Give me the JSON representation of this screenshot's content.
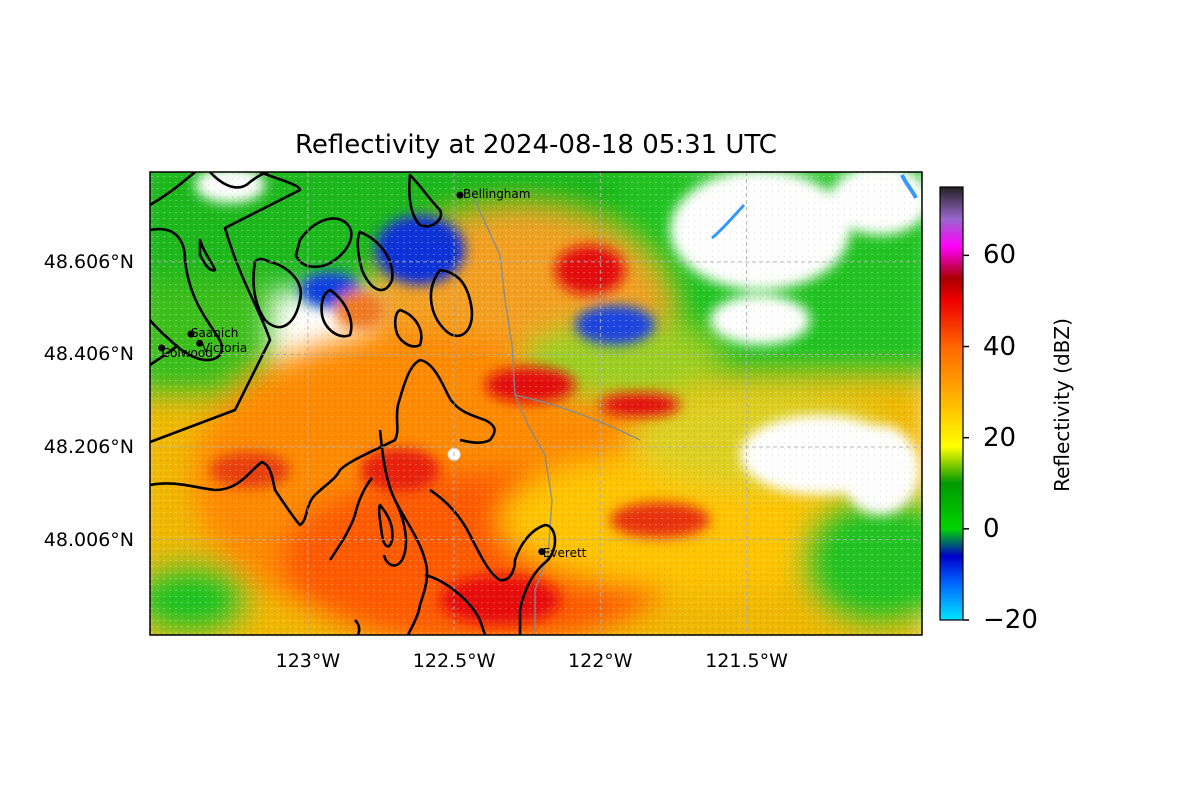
{
  "title": "Reflectivity at 2024-08-18 05:31 UTC",
  "latitude_ticks": [
    {
      "value": 48.606,
      "label": "48.606°N"
    },
    {
      "value": 48.406,
      "label": "48.406°N"
    },
    {
      "value": 48.206,
      "label": "48.206°N"
    },
    {
      "value": 48.006,
      "label": "48.006°N"
    }
  ],
  "longitude_ticks": [
    {
      "value": -123.0,
      "label": "123°W"
    },
    {
      "value": -122.5,
      "label": "122.5°W"
    },
    {
      "value": -122.0,
      "label": "122°W"
    },
    {
      "value": -121.5,
      "label": "121.5°W"
    }
  ],
  "map_extent": {
    "lon_min": -123.54,
    "lon_max": -120.9,
    "lat_min": 47.8,
    "lat_max": 48.8
  },
  "colorbar": {
    "label": "Reflectivity (dBZ)",
    "min": -20,
    "max": 75,
    "ticks": [
      {
        "value": 60,
        "label": "60"
      },
      {
        "value": 40,
        "label": "40"
      },
      {
        "value": 20,
        "label": "20"
      },
      {
        "value": 0,
        "label": "0"
      },
      {
        "value": -20,
        "label": "−20"
      }
    ],
    "stops": [
      {
        "value": -20,
        "color": "#00e5ff"
      },
      {
        "value": -12,
        "color": "#0066ff"
      },
      {
        "value": -6,
        "color": "#0000cc"
      },
      {
        "value": 0,
        "color": "#00d400"
      },
      {
        "value": 10,
        "color": "#009900"
      },
      {
        "value": 18,
        "color": "#ffff00"
      },
      {
        "value": 30,
        "color": "#ffaa00"
      },
      {
        "value": 40,
        "color": "#ff6600"
      },
      {
        "value": 50,
        "color": "#ee0000"
      },
      {
        "value": 55,
        "color": "#aa0000"
      },
      {
        "value": 62,
        "color": "#ff00ff"
      },
      {
        "value": 68,
        "color": "#9966cc"
      },
      {
        "value": 75,
        "color": "#222222"
      }
    ]
  },
  "cities": [
    {
      "name": "Bellingham",
      "lon": -122.48,
      "lat": 48.75
    },
    {
      "name": "Saanich",
      "lon": -123.4,
      "lat": 48.45
    },
    {
      "name": "Victoria",
      "lon": -123.37,
      "lat": 48.43
    },
    {
      "name": "Colwood",
      "lon": -123.5,
      "lat": 48.42
    },
    {
      "name": "Everett",
      "lon": -122.2,
      "lat": 47.98
    }
  ],
  "radar_site": {
    "lon": -122.5,
    "lat": 48.19
  }
}
